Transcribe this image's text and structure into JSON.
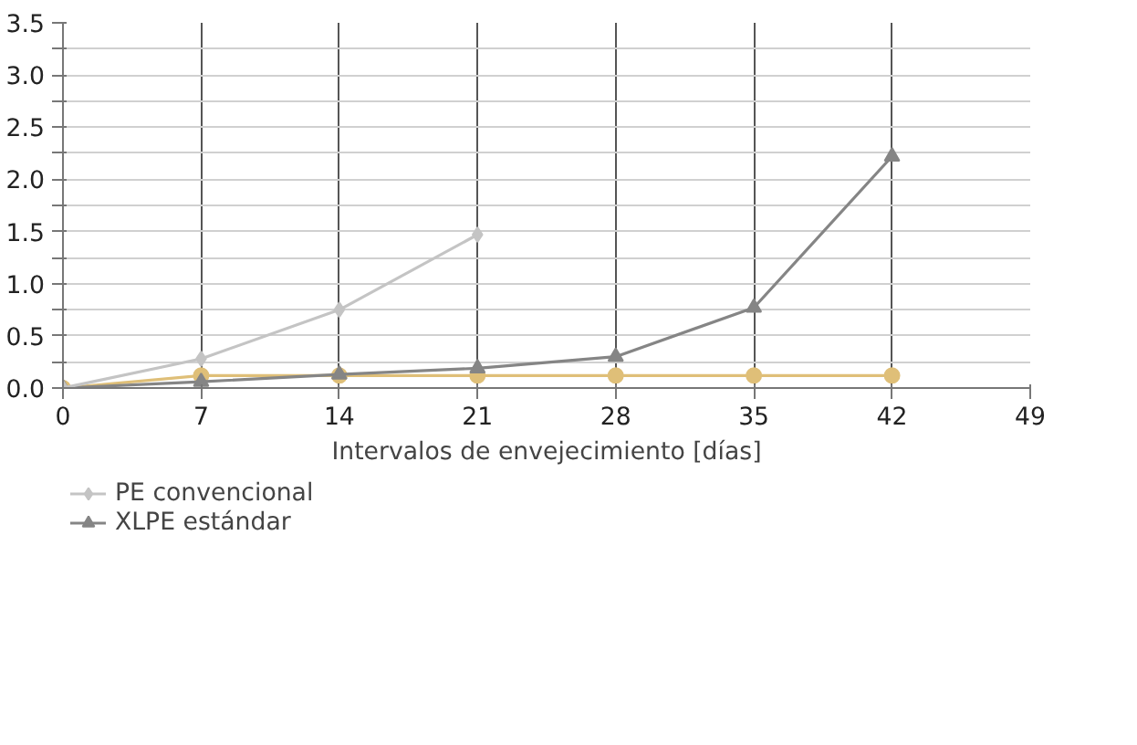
{
  "chart_data": {
    "type": "line",
    "xlabel": "Intervalos de envejecimiento [días]",
    "xlim": [
      0,
      49
    ],
    "xticks": [
      0,
      7,
      14,
      21,
      28,
      35,
      42,
      49
    ],
    "ylim": [
      0,
      3.5
    ],
    "yticks": [
      {
        "value": 0,
        "label": "0.0"
      },
      {
        "value": 0.25,
        "label": null
      },
      {
        "value": 0.5,
        "label": "0.5"
      },
      {
        "value": 0.75,
        "label": null
      },
      {
        "value": 1,
        "label": "1.0"
      },
      {
        "value": 1.25,
        "label": null
      },
      {
        "value": 1.5,
        "label": "1.5"
      },
      {
        "value": 1.75,
        "label": null
      },
      {
        "value": 2,
        "label": "2.0"
      },
      {
        "value": 2.25,
        "label": null
      },
      {
        "value": 2.5,
        "label": "2.5"
      },
      {
        "value": 2.75,
        "label": null
      },
      {
        "value": 3,
        "label": "3.0"
      },
      {
        "value": 3.25,
        "label": null
      },
      {
        "value": 3.5,
        "label": "3.5"
      }
    ],
    "grid": true,
    "legend": "bottom",
    "line_style": "solid",
    "series": [
      {
        "name": "PE convencional",
        "color": "#c4c4c4",
        "marker": "diamond",
        "x": [
          0,
          7,
          14,
          21
        ],
        "values": [
          0,
          0.28,
          0.75,
          1.47
        ]
      },
      {
        "name": "XLPE estándar",
        "color": "#858585",
        "marker": "triangle",
        "x": [
          0,
          7,
          14,
          21,
          28,
          35,
          42
        ],
        "values": [
          0,
          0.06,
          0.13,
          0.19,
          0.3,
          0.77,
          2.22
        ]
      },
      {
        "color": "#dfbf78",
        "marker": "circle",
        "x": [
          0,
          7,
          14,
          21,
          28,
          35,
          42
        ],
        "values": [
          0,
          0.12,
          0.12,
          0.12,
          0.12,
          0.12,
          0.12
        ]
      }
    ]
  }
}
